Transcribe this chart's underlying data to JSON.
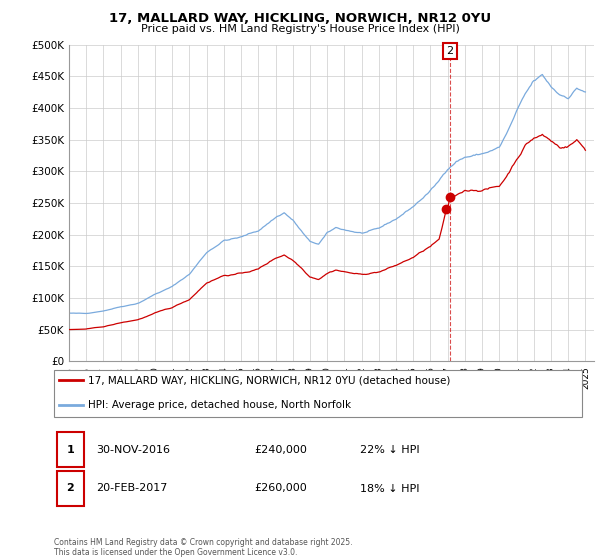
{
  "title1": "17, MALLARD WAY, HICKLING, NORWICH, NR12 0YU",
  "title2": "Price paid vs. HM Land Registry's House Price Index (HPI)",
  "ylim": [
    0,
    500000
  ],
  "yticks": [
    0,
    50000,
    100000,
    150000,
    200000,
    250000,
    300000,
    350000,
    400000,
    450000,
    500000
  ],
  "ytick_labels": [
    "£0",
    "£50K",
    "£100K",
    "£150K",
    "£200K",
    "£250K",
    "£300K",
    "£350K",
    "£400K",
    "£450K",
    "£500K"
  ],
  "hpi_color": "#7aaadd",
  "price_color": "#cc0000",
  "grid_color": "#cccccc",
  "legend_label_red": "17, MALLARD WAY, HICKLING, NORWICH, NR12 0YU (detached house)",
  "legend_label_blue": "HPI: Average price, detached house, North Norfolk",
  "transactions": [
    {
      "num": 1,
      "date": "30-NOV-2016",
      "price": "£240,000",
      "hpi": "22% ↓ HPI"
    },
    {
      "num": 2,
      "date": "20-FEB-2017",
      "price": "£260,000",
      "hpi": "18% ↓ HPI"
    }
  ],
  "copyright": "Contains HM Land Registry data © Crown copyright and database right 2025.\nThis data is licensed under the Open Government Licence v3.0.",
  "trans1_x": 2016.917,
  "trans1_y": 240000,
  "trans2_x": 2017.125,
  "trans2_y": 260000,
  "xmin": 1995.0,
  "xmax": 2025.5
}
